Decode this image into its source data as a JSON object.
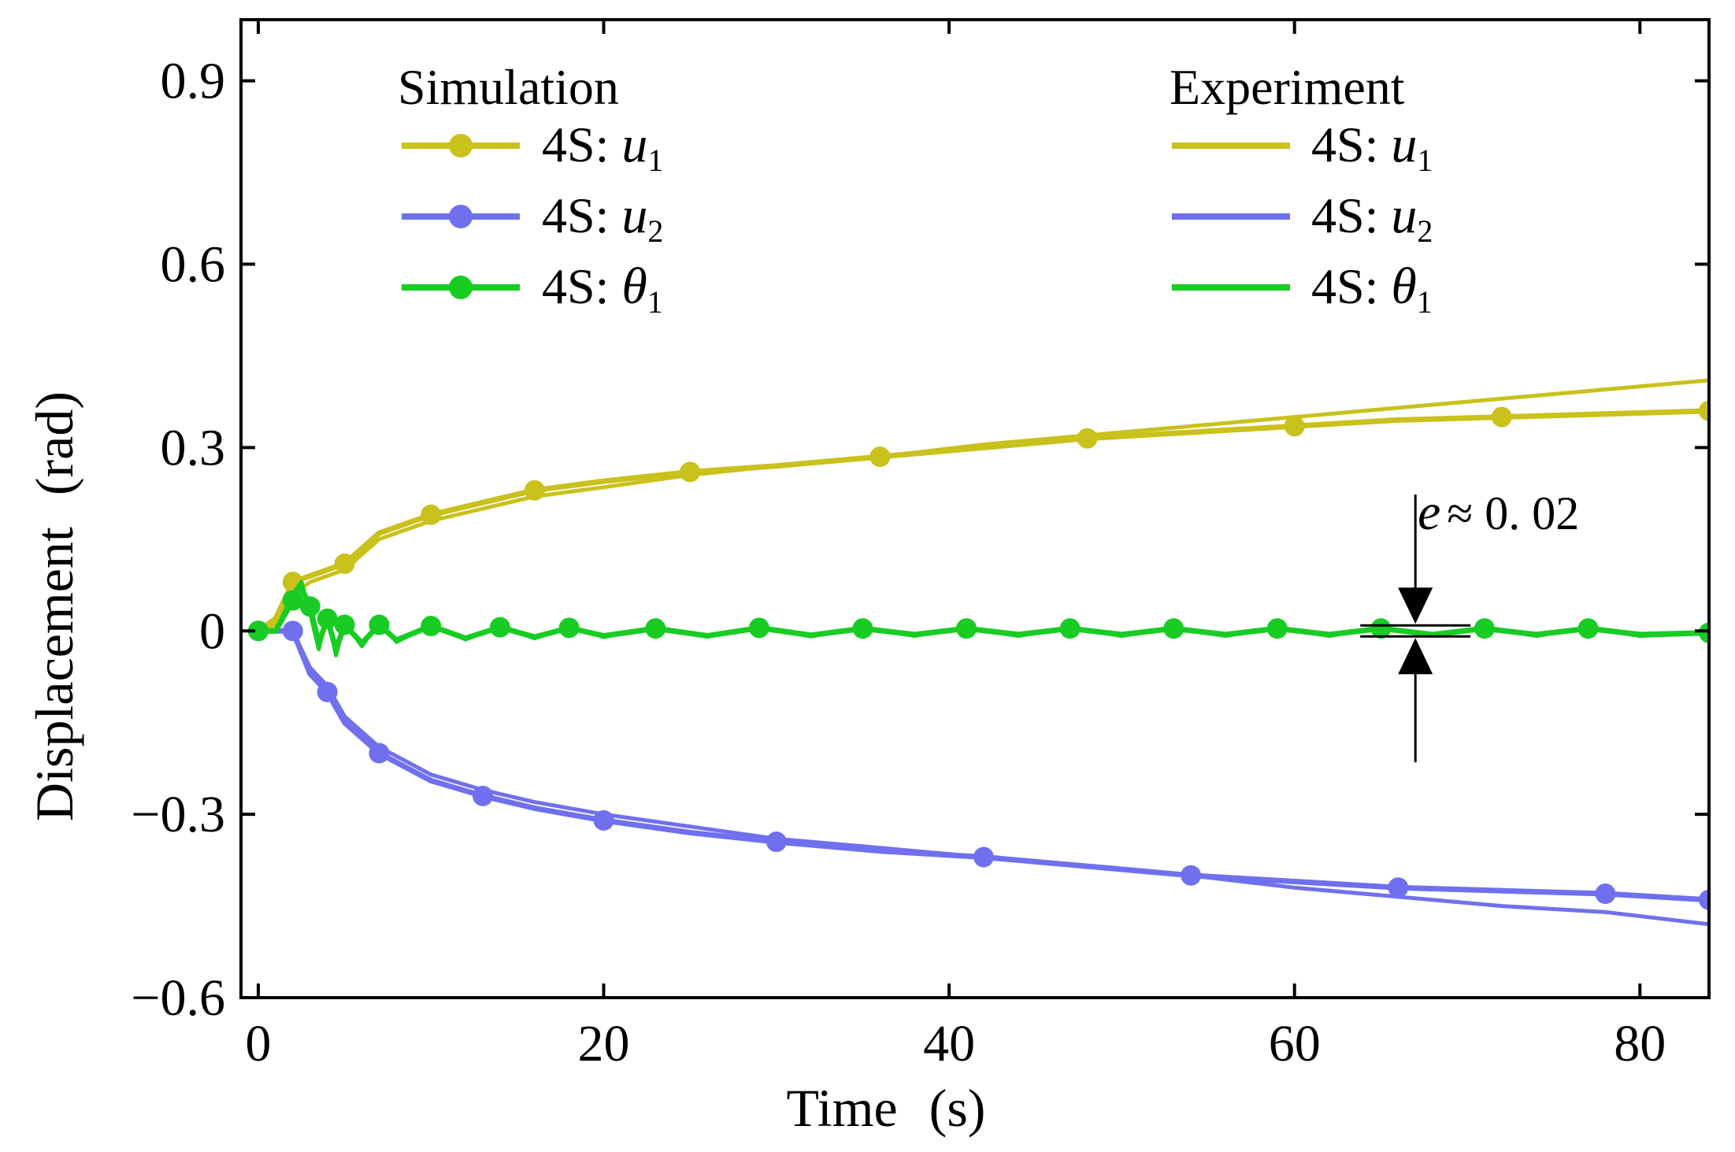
{
  "chart_data": {
    "type": "line",
    "title": "",
    "xlabel": "Time",
    "xlabel_unit": "(s)",
    "ylabel": "Displacement",
    "ylabel_unit": "(rad)",
    "xlim": [
      -1,
      84
    ],
    "ylim": [
      -0.6,
      1.0
    ],
    "xticks": [
      0,
      20,
      40,
      60,
      80
    ],
    "xtick_labels": [
      "0",
      "20",
      "40",
      "60",
      "80"
    ],
    "yticks": [
      -0.6,
      -0.3,
      0,
      0.3,
      0.6,
      0.9
    ],
    "ytick_labels": [
      "−0.6",
      "−0.3",
      "0",
      "0.3",
      "0.6",
      "0.9"
    ],
    "grid": false,
    "colors": {
      "u1": "#c9c11c",
      "u2": "#7070ee",
      "theta1": "#18cc24"
    },
    "legend": {
      "simulation_header": "Simulation",
      "experiment_header": "Experiment",
      "prefix": "4S:",
      "entries": [
        {
          "key": "u1",
          "sym": "u",
          "sub": "1"
        },
        {
          "key": "u2",
          "sym": "u",
          "sub": "2"
        },
        {
          "key": "theta1",
          "sym": "θ",
          "sub": "1"
        }
      ]
    },
    "annotation": {
      "sym": "e",
      "text": "≈ 0. 02",
      "value": 0.02,
      "x": 67
    },
    "series": [
      {
        "name": "Simulation 4S: u1",
        "key": "u1",
        "kind": "simulation",
        "x": [
          0,
          1,
          2,
          3,
          5,
          7,
          10,
          13,
          16,
          20,
          25,
          30,
          36,
          42,
          48,
          54,
          60,
          66,
          72,
          78,
          84
        ],
        "y": [
          0,
          0.02,
          0.08,
          0.09,
          0.11,
          0.16,
          0.19,
          0.21,
          0.23,
          0.245,
          0.26,
          0.27,
          0.285,
          0.3,
          0.315,
          0.325,
          0.335,
          0.345,
          0.35,
          0.355,
          0.36
        ]
      },
      {
        "name": "Experiment 4S: u1",
        "key": "u1",
        "kind": "experiment",
        "x": [
          0,
          1,
          2,
          3,
          5,
          7,
          10,
          13,
          16,
          20,
          25,
          30,
          36,
          42,
          48,
          54,
          60,
          66,
          72,
          78,
          84
        ],
        "y": [
          0,
          0.01,
          0.06,
          0.08,
          0.1,
          0.15,
          0.18,
          0.2,
          0.22,
          0.235,
          0.255,
          0.27,
          0.285,
          0.305,
          0.32,
          0.335,
          0.35,
          0.365,
          0.38,
          0.395,
          0.41
        ]
      },
      {
        "name": "Simulation 4S: u2",
        "key": "u2",
        "kind": "simulation",
        "x": [
          0,
          1,
          2,
          3,
          4,
          5,
          7,
          10,
          13,
          16,
          20,
          25,
          30,
          36,
          42,
          48,
          54,
          60,
          66,
          72,
          78,
          84
        ],
        "y": [
          0,
          0,
          0,
          -0.07,
          -0.1,
          -0.15,
          -0.2,
          -0.245,
          -0.27,
          -0.29,
          -0.31,
          -0.33,
          -0.345,
          -0.36,
          -0.37,
          -0.385,
          -0.4,
          -0.41,
          -0.42,
          -0.425,
          -0.43,
          -0.44
        ]
      },
      {
        "name": "Experiment 4S: u2",
        "key": "u2",
        "kind": "experiment",
        "x": [
          0,
          1,
          2,
          3,
          4,
          5,
          7,
          10,
          13,
          16,
          20,
          25,
          30,
          36,
          42,
          48,
          54,
          60,
          66,
          72,
          78,
          84
        ],
        "y": [
          0,
          0,
          0,
          -0.06,
          -0.09,
          -0.14,
          -0.19,
          -0.235,
          -0.26,
          -0.28,
          -0.3,
          -0.32,
          -0.34,
          -0.355,
          -0.37,
          -0.385,
          -0.4,
          -0.42,
          -0.435,
          -0.45,
          -0.46,
          -0.48
        ]
      },
      {
        "name": "Simulation 4S: theta1",
        "key": "theta1",
        "kind": "simulation",
        "x": [
          0,
          1,
          2,
          2.5,
          3,
          3.5,
          4,
          4.5,
          5,
          6,
          7,
          8,
          10,
          12,
          14,
          16,
          18,
          20,
          23,
          26,
          29,
          32,
          35,
          38,
          41,
          44,
          47,
          50,
          53,
          56,
          59,
          62,
          65,
          68,
          71,
          74,
          77,
          80,
          84
        ],
        "y": [
          0,
          0,
          0.05,
          0.07,
          0.04,
          -0.02,
          0.02,
          -0.03,
          0.01,
          -0.02,
          0.01,
          -0.015,
          0.008,
          -0.012,
          0.006,
          -0.01,
          0.005,
          -0.008,
          0.004,
          -0.008,
          0.005,
          -0.007,
          0.004,
          -0.006,
          0.004,
          -0.006,
          0.004,
          -0.006,
          0.004,
          -0.006,
          0.004,
          -0.006,
          0.004,
          -0.006,
          0.004,
          -0.006,
          0.004,
          -0.006,
          -0.003
        ]
      },
      {
        "name": "Experiment 4S: theta1",
        "key": "theta1",
        "kind": "experiment",
        "x": [
          0,
          1,
          2,
          2.5,
          3,
          3.5,
          4,
          4.5,
          5,
          6,
          7,
          8,
          10,
          12,
          14,
          16,
          18,
          20,
          23,
          26,
          29,
          32,
          35,
          38,
          41,
          44,
          47,
          50,
          53,
          56,
          59,
          62,
          65,
          68,
          71,
          74,
          77,
          80,
          84
        ],
        "y": [
          0,
          0,
          0.06,
          0.08,
          0.03,
          -0.03,
          0.025,
          -0.04,
          0.015,
          -0.025,
          0.015,
          -0.018,
          0.01,
          -0.014,
          0.008,
          -0.012,
          0.007,
          -0.01,
          0.006,
          -0.009,
          0.006,
          -0.009,
          0.005,
          -0.008,
          0.005,
          -0.008,
          0.005,
          -0.008,
          0.005,
          -0.008,
          0.005,
          -0.008,
          0.005,
          -0.008,
          0.005,
          -0.008,
          0.005,
          -0.008,
          -0.004
        ]
      }
    ]
  }
}
